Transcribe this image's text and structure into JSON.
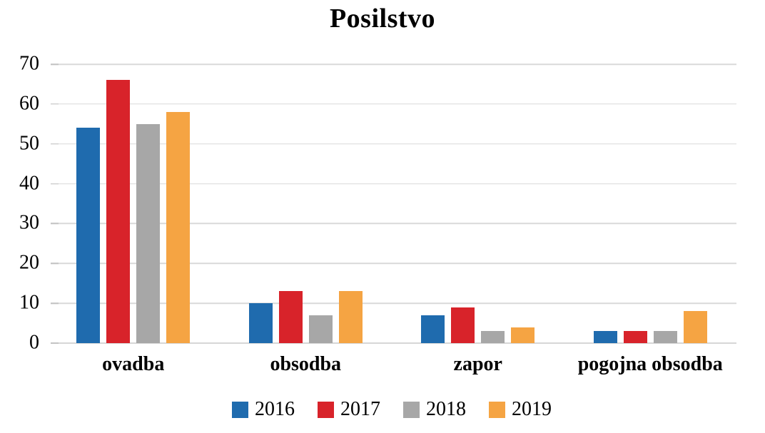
{
  "chart_data": {
    "type": "bar",
    "title": "Posilstvo",
    "categories": [
      "ovadba",
      "obsodba",
      "zapor",
      "pogojna obsodba"
    ],
    "series": [
      {
        "name": "2016",
        "color": "#1f6bae",
        "values": [
          54,
          10,
          7,
          3
        ]
      },
      {
        "name": "2017",
        "color": "#d8232a",
        "values": [
          66,
          13,
          9,
          3
        ]
      },
      {
        "name": "2018",
        "color": "#a7a7a7",
        "values": [
          55,
          7,
          3,
          3
        ]
      },
      {
        "name": "2019",
        "color": "#f5a443",
        "values": [
          58,
          13,
          4,
          8
        ]
      }
    ],
    "xlabel": "",
    "ylabel": "",
    "ylim": [
      0,
      70
    ],
    "ytick_step": 10,
    "yticks": [
      0,
      10,
      20,
      30,
      40,
      50,
      60,
      70
    ],
    "grid": true,
    "legend_position": "bottom"
  },
  "colors": {
    "background": "#ffffff",
    "gridline": "#d9d9d9",
    "baseline": "#d6d6d6",
    "tick": "#c3c3c3",
    "text": "#000000"
  }
}
